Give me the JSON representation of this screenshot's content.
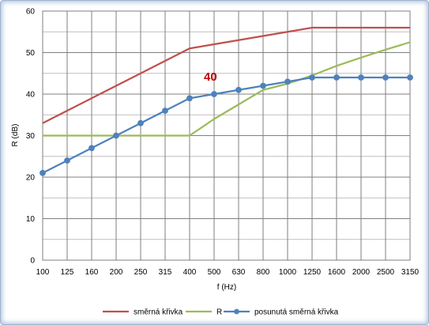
{
  "chart_data": {
    "type": "line",
    "categories": [
      "100",
      "125",
      "160",
      "200",
      "250",
      "315",
      "400",
      "500",
      "630",
      "800",
      "1000",
      "1250",
      "1600",
      "2000",
      "2500",
      "3150"
    ],
    "ylim": [
      0,
      60
    ],
    "yticks": [
      "0",
      "10",
      "20",
      "30",
      "40",
      "50",
      "60"
    ],
    "xlabel": "f (Hz)",
    "ylabel": "R (dB)",
    "grid": true,
    "legend_position": "bottom",
    "annotation": "40",
    "series": [
      {
        "name": "směrná křivka",
        "color": "#c0504d",
        "marker": false,
        "values": [
          33,
          36,
          39,
          42,
          45,
          48,
          51,
          52,
          53,
          54,
          55,
          56,
          56,
          56,
          56,
          56
        ]
      },
      {
        "name": "R",
        "color": "#9bbb59",
        "marker": false,
        "values": [
          30,
          30,
          30,
          30,
          30,
          30,
          30,
          34,
          37.5,
          41,
          42.5,
          44.5,
          46.8,
          48.8,
          50.7,
          52.5
        ]
      },
      {
        "name": "posunutá směrná křivka",
        "color": "#4f81bd",
        "marker": true,
        "values": [
          21,
          24,
          27,
          30,
          33,
          36,
          39,
          40,
          41,
          42,
          43,
          44,
          44,
          44,
          44,
          44
        ]
      }
    ]
  }
}
